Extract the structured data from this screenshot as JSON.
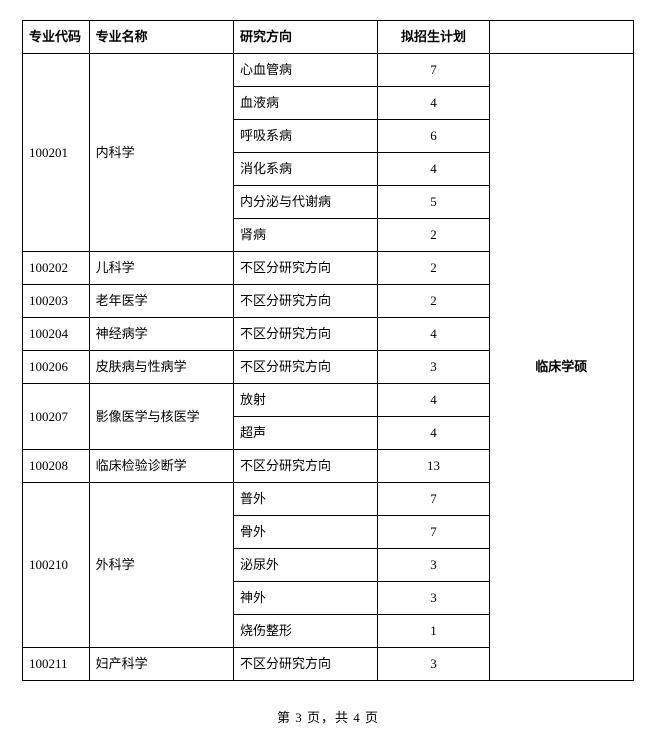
{
  "headers": {
    "code": "专业代码",
    "name": "专业名称",
    "direction": "研究方向",
    "plan": "拟招生计划",
    "category": ""
  },
  "category_label": "临床学硕",
  "rows": [
    {
      "code": "100201",
      "name": "内科学",
      "direction": "心血管病",
      "plan": "7",
      "code_rowspan": 6,
      "name_rowspan": 6
    },
    {
      "direction": "血液病",
      "plan": "4"
    },
    {
      "direction": "呼吸系病",
      "plan": "6"
    },
    {
      "direction": "消化系病",
      "plan": "4"
    },
    {
      "direction": "内分泌与代谢病",
      "plan": "5"
    },
    {
      "direction": "肾病",
      "plan": "2"
    },
    {
      "code": "100202",
      "name": "儿科学",
      "direction": "不区分研究方向",
      "plan": "2"
    },
    {
      "code": "100203",
      "name": "老年医学",
      "direction": "不区分研究方向",
      "plan": "2"
    },
    {
      "code": "100204",
      "name": "神经病学",
      "direction": "不区分研究方向",
      "plan": "4"
    },
    {
      "code": "100206",
      "name": "皮肤病与性病学",
      "direction": "不区分研究方向",
      "plan": "3"
    },
    {
      "code": "100207",
      "name": "影像医学与核医学",
      "direction": "放射",
      "plan": "4",
      "code_rowspan": 2,
      "name_rowspan": 2
    },
    {
      "direction": "超声",
      "plan": "4"
    },
    {
      "code": "100208",
      "name": "临床检验诊断学",
      "direction": "不区分研究方向",
      "plan": "13"
    },
    {
      "code": "100210",
      "name": "外科学",
      "direction": "普外",
      "plan": "7",
      "code_rowspan": 5,
      "name_rowspan": 5
    },
    {
      "direction": "骨外",
      "plan": "7"
    },
    {
      "direction": "泌尿外",
      "plan": "3"
    },
    {
      "direction": "神外",
      "plan": "3"
    },
    {
      "direction": "烧伤整形",
      "plan": "1"
    },
    {
      "code": "100211",
      "name": "妇产科学",
      "direction": "不区分研究方向",
      "plan": "3"
    }
  ],
  "footer": {
    "text": "第 3 页，共 4 页"
  },
  "style": {
    "font_family": "SimSun",
    "font_size_pt": 10,
    "border_color": "#000000",
    "background_color": "#ffffff",
    "text_color": "#000000"
  }
}
